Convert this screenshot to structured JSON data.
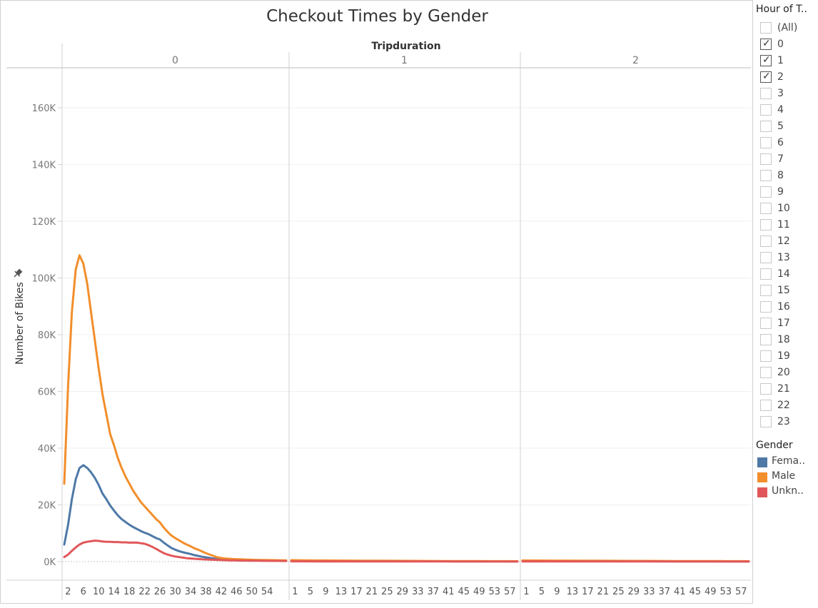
{
  "chart_data": {
    "type": "line",
    "title": "Checkout Times by Gender",
    "column_header": "Tripduration",
    "ylabel": "Number of Bikes",
    "ylim": [
      0,
      170000
    ],
    "y_ticks": [
      0,
      20000,
      40000,
      60000,
      80000,
      100000,
      120000,
      140000,
      160000
    ],
    "y_tick_labels": [
      "0K",
      "20K",
      "40K",
      "60K",
      "80K",
      "100K",
      "120K",
      "140K",
      "160K"
    ],
    "grid": true,
    "panels": [
      {
        "label": "0",
        "x_ticks": [
          2,
          6,
          10,
          14,
          18,
          22,
          26,
          30,
          34,
          38,
          42,
          46,
          50,
          54
        ],
        "x": [
          1,
          2,
          3,
          4,
          5,
          6,
          7,
          8,
          9,
          10,
          11,
          12,
          13,
          14,
          15,
          16,
          17,
          18,
          19,
          20,
          21,
          22,
          23,
          24,
          25,
          26,
          27,
          28,
          29,
          30,
          31,
          32,
          33,
          34,
          35,
          36,
          37,
          38,
          39,
          40,
          41,
          42,
          43,
          44,
          45,
          46,
          47,
          48,
          49,
          50,
          51,
          52,
          53,
          54,
          55,
          56,
          57,
          58,
          59
        ],
        "series": [
          {
            "name": "Female",
            "color": "#4e79a7",
            "values": [
              6000,
              13000,
              22000,
              29000,
              33000,
              34000,
              33000,
              31500,
              29500,
              27000,
              24000,
              22000,
              19800,
              18000,
              16300,
              15000,
              14000,
              13000,
              12200,
              11500,
              10800,
              10200,
              9700,
              9000,
              8300,
              7800,
              6700,
              5700,
              4800,
              4200,
              3700,
              3300,
              3000,
              2700,
              2300,
              2000,
              1700,
              1500,
              1300,
              1100,
              1000,
              900,
              800,
              700,
              650,
              600,
              550,
              500,
              450,
              420,
              400,
              380,
              360,
              340,
              330,
              320,
              310,
              300,
              290
            ]
          },
          {
            "name": "Male",
            "color": "#f28e2b",
            "values": [
              27500,
              62000,
              88000,
              103000,
              108000,
              105000,
              98000,
              88000,
              78000,
              68000,
              59000,
              52000,
              45000,
              41000,
              36500,
              33000,
              30000,
              27500,
              25000,
              23000,
              21000,
              19500,
              18000,
              16500,
              15000,
              13800,
              12000,
              10500,
              9200,
              8300,
              7500,
              6700,
              6000,
              5400,
              4700,
              4200,
              3600,
              3000,
              2500,
              2000,
              1500,
              1300,
              1100,
              1000,
              900,
              850,
              800,
              750,
              700,
              650,
              600,
              580,
              560,
              540,
              520,
              500,
              480,
              460,
              440
            ]
          },
          {
            "name": "Unknown",
            "color": "#e15759",
            "values": [
              1600,
              2500,
              3800,
              5000,
              6000,
              6700,
              7000,
              7200,
              7400,
              7300,
              7100,
              7000,
              7000,
              6900,
              6900,
              6800,
              6800,
              6700,
              6700,
              6700,
              6500,
              6300,
              5800,
              5200,
              4500,
              3700,
              3000,
              2500,
              2100,
              1800,
              1600,
              1400,
              1200,
              1100,
              1000,
              900,
              800,
              750,
              700,
              650,
              600,
              550,
              500,
              450,
              420,
              400,
              380,
              360,
              340,
              320,
              300,
              290,
              280,
              270,
              260,
              250,
              240,
              230,
              220
            ]
          }
        ]
      },
      {
        "label": "1",
        "x_ticks": [
          1,
          5,
          9,
          13,
          17,
          21,
          25,
          29,
          33,
          37,
          41,
          45,
          49,
          53,
          57
        ],
        "x": [
          0,
          4,
          8,
          12,
          16,
          20,
          24,
          28,
          32,
          36,
          40,
          44,
          48,
          52,
          56,
          59
        ],
        "series": [
          {
            "name": "Female",
            "color": "#4e79a7",
            "values": [
              250,
              230,
              210,
              190,
              180,
              170,
              160,
              150,
              140,
              130,
              120,
              110,
              100,
              95,
              90,
              85
            ]
          },
          {
            "name": "Male",
            "color": "#f28e2b",
            "values": [
              500,
              450,
              400,
              370,
              340,
              310,
              290,
              270,
              250,
              230,
              210,
              190,
              170,
              160,
              150,
              140
            ]
          },
          {
            "name": "Unknown",
            "color": "#e15759",
            "values": [
              100,
              90,
              80,
              75,
              70,
              65,
              60,
              55,
              50,
              45,
              40,
              35,
              30,
              28,
              26,
              25
            ]
          }
        ]
      },
      {
        "label": "2",
        "x_ticks": [
          1,
          5,
          9,
          13,
          17,
          21,
          25,
          29,
          33,
          37,
          41,
          45,
          49,
          53,
          57
        ],
        "x": [
          0,
          4,
          8,
          12,
          16,
          20,
          24,
          28,
          32,
          36,
          40,
          44,
          48,
          52,
          56,
          59
        ],
        "series": [
          {
            "name": "Female",
            "color": "#4e79a7",
            "values": [
              200,
              190,
              180,
              170,
              160,
              150,
              140,
              130,
              120,
              110,
              100,
              95,
              90,
              85,
              80,
              75
            ]
          },
          {
            "name": "Male",
            "color": "#f28e2b",
            "values": [
              400,
              380,
              360,
              340,
              320,
              300,
              280,
              260,
              240,
              220,
              200,
              190,
              180,
              170,
              160,
              150
            ]
          },
          {
            "name": "Unknown",
            "color": "#e15759",
            "values": [
              80,
              75,
              70,
              65,
              60,
              55,
              50,
              45,
              40,
              38,
              36,
              34,
              32,
              30,
              28,
              26
            ]
          }
        ]
      }
    ]
  },
  "filter": {
    "title": "Hour of T..",
    "all_label": "(All)",
    "items": [
      {
        "label": "0",
        "checked": true
      },
      {
        "label": "1",
        "checked": true
      },
      {
        "label": "2",
        "checked": true
      },
      {
        "label": "3",
        "checked": false
      },
      {
        "label": "4",
        "checked": false
      },
      {
        "label": "5",
        "checked": false
      },
      {
        "label": "6",
        "checked": false
      },
      {
        "label": "7",
        "checked": false
      },
      {
        "label": "8",
        "checked": false
      },
      {
        "label": "9",
        "checked": false
      },
      {
        "label": "10",
        "checked": false
      },
      {
        "label": "11",
        "checked": false
      },
      {
        "label": "12",
        "checked": false
      },
      {
        "label": "13",
        "checked": false
      },
      {
        "label": "14",
        "checked": false
      },
      {
        "label": "15",
        "checked": false
      },
      {
        "label": "16",
        "checked": false
      },
      {
        "label": "17",
        "checked": false
      },
      {
        "label": "18",
        "checked": false
      },
      {
        "label": "19",
        "checked": false
      },
      {
        "label": "20",
        "checked": false
      },
      {
        "label": "21",
        "checked": false
      },
      {
        "label": "22",
        "checked": false
      },
      {
        "label": "23",
        "checked": false
      }
    ]
  },
  "legend": {
    "title": "Gender",
    "items": [
      {
        "label": "Fema..",
        "color": "#4e79a7"
      },
      {
        "label": "Male",
        "color": "#f28e2b"
      },
      {
        "label": "Unkn..",
        "color": "#e15759"
      }
    ]
  },
  "icons": {
    "pin": "pin-icon",
    "check": "checkmark-icon"
  }
}
